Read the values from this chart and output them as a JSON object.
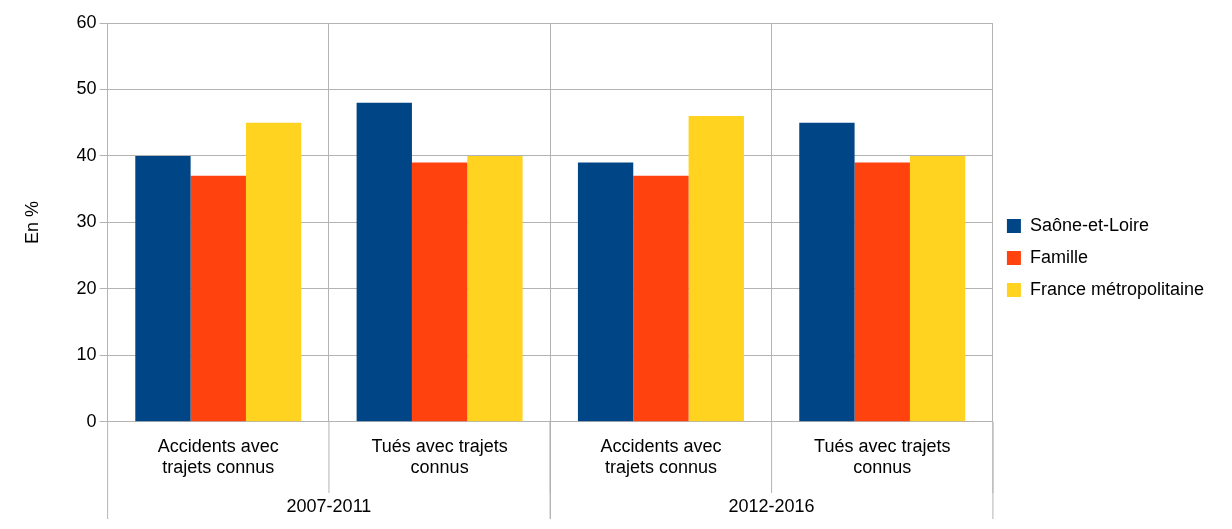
{
  "chart_data": {
    "type": "bar",
    "ylabel": "En %",
    "categories": [
      "Accidents avec trajets connus",
      "Tués avec trajets connus",
      "Accidents avec trajets connus",
      "Tués avec trajets connus"
    ],
    "series": [
      {
        "name": "Saône-et-Loire",
        "color": "#004586",
        "values": [
          40,
          48,
          39,
          45
        ]
      },
      {
        "name": "Famille",
        "color": "#ff420e",
        "values": [
          37,
          39,
          37,
          39
        ]
      },
      {
        "name": "France métropolitaine",
        "color": "#ffd320",
        "values": [
          45,
          40,
          46,
          40
        ]
      }
    ],
    "annotations": [
      "2007-2011",
      "2012-2016"
    ],
    "ylim": [
      0,
      60
    ],
    "yticks": [
      0,
      10,
      20,
      30,
      40,
      50,
      60
    ],
    "grid": true,
    "legend": "right"
  }
}
